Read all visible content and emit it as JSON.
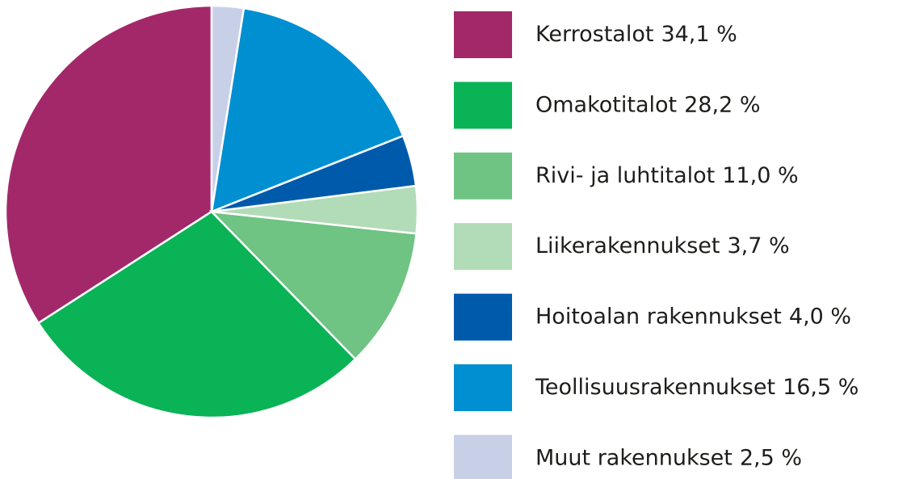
{
  "chart_data": {
    "type": "pie",
    "categories": [
      "Kerrostalot",
      "Omakotitalot",
      "Rivi- ja luhtitalot",
      "Liikerakennukset",
      "Hoitoalan rakennukset",
      "Teollisuusrakennukset",
      "Muut rakennukset"
    ],
    "values": [
      34.1,
      28.2,
      11.0,
      3.7,
      4.0,
      16.5,
      2.5
    ],
    "value_labels": [
      "34,1 %",
      "28,2 %",
      "11,0 %",
      "3,7 %",
      "4,0 %",
      "16,5 %",
      "2,5 %"
    ],
    "colors": [
      "#a3286a",
      "#0ab355",
      "#6fc383",
      "#b2dcb8",
      "#005aab",
      "#008fd1",
      "#c8d0e8"
    ],
    "direction": "counterclockwise",
    "legend": "right"
  }
}
